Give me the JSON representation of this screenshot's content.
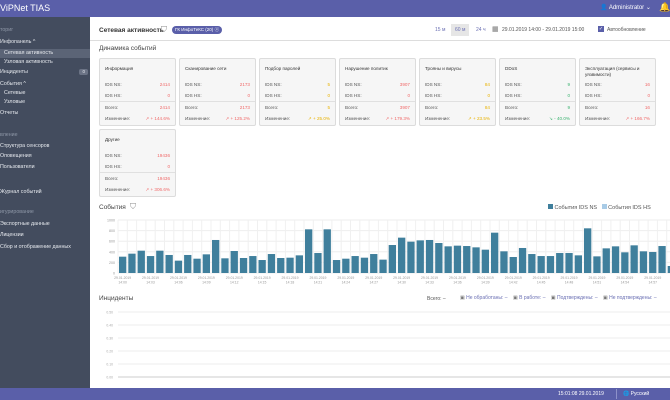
{
  "header": {
    "app_title": "ViPNet TIAS",
    "user": "Administrator"
  },
  "sidebar": {
    "items": [
      {
        "label": "ториг",
        "type": "grp"
      },
      {
        "label": "Инфопанель ^",
        "type": "item"
      },
      {
        "label": "Сетевая активность",
        "type": "sub sel"
      },
      {
        "label": "Узловая активность",
        "type": "sub"
      },
      {
        "label": "Инциденты",
        "type": "item",
        "badge": "0"
      },
      {
        "label": "События ^",
        "type": "item"
      },
      {
        "label": "Сетевые",
        "type": "sub"
      },
      {
        "label": "Узловые",
        "type": "sub"
      },
      {
        "label": "Отчеты",
        "type": "item"
      },
      {
        "label": "вление",
        "type": "grp"
      },
      {
        "label": "Структура сенсоров",
        "type": "item"
      },
      {
        "label": "Оповещения",
        "type": "item"
      },
      {
        "label": "Пользователи",
        "type": "item"
      },
      {
        "label": "Журнал событий",
        "type": "item"
      },
      {
        "label": "игурирование",
        "type": "grp"
      },
      {
        "label": "Экспортные данные",
        "type": "item"
      },
      {
        "label": "Лицензии",
        "type": "item"
      },
      {
        "label": "Сбор и отображение данных",
        "type": "item"
      }
    ]
  },
  "toolbar": {
    "title": "Сетевая активность",
    "filter_chip": "ГК ИнфоТеКС (20)",
    "ranges": [
      "15 м",
      "60 м",
      "24 ч"
    ],
    "active_range": "60 м",
    "date_range": "29.01.2019 14:00 - 29.01.2019 15:00",
    "auto_refresh": "Автообновление"
  },
  "dynamics": {
    "title": "Динамика событий",
    "labels": {
      "ns": "IDS NS:",
      "hs": "IDS HS:",
      "total": "Всего:",
      "change": "Изменение:"
    },
    "cards": [
      {
        "title": "Информация",
        "ns": "2414",
        "hs": "0",
        "total": "2414",
        "change": "↗ + 144.6%",
        "color": "#f06a6a"
      },
      {
        "title": "Сканирование сети",
        "ns": "2173",
        "hs": "0",
        "total": "2173",
        "change": "↗ + 125.2%",
        "color": "#f06a6a"
      },
      {
        "title": "Подбор паролей",
        "ns": "5",
        "hs": "0",
        "total": "5",
        "change": "↗ + 25.0%",
        "color": "#e8b200"
      },
      {
        "title": "Нарушение политик",
        "ns": "3907",
        "hs": "0",
        "total": "3907",
        "change": "↗ + 179.3%",
        "color": "#f06a6a"
      },
      {
        "title": "Трояны и вирусы",
        "ns": "84",
        "hs": "0",
        "total": "84",
        "change": "↗ + 23.5%",
        "color": "#e8b200"
      },
      {
        "title": "DDoS",
        "ns": "9",
        "hs": "0",
        "total": "9",
        "change": "↘ - 40.0%",
        "color": "#3cb371"
      },
      {
        "title": "Эксплуатация (сервисы и уязвимости)",
        "ns": "16",
        "hs": "0",
        "total": "16",
        "change": "↗ + 166.7%",
        "color": "#f06a6a"
      },
      {
        "title": "Другие",
        "ns": "19436",
        "hs": "0",
        "total": "19436",
        "change": "↗ + 306.6%",
        "color": "#f06a6a"
      }
    ]
  },
  "chart_data": {
    "type": "bar",
    "title": "События",
    "ylim": [
      0,
      1000
    ],
    "yticks": [
      "1000",
      "800",
      "600",
      "400",
      "200",
      "0"
    ],
    "legend": [
      "События IDS NS",
      "События IDS HS"
    ],
    "colors": [
      "#3f7f9c",
      "#a8cbe6"
    ],
    "xticks": [
      "29.01.2019 14:00",
      "29.01.2019 14:03",
      "29.01.2019 14:06",
      "29.01.2019 14:09",
      "29.01.2019 14:12",
      "29.01.2019 14:15",
      "29.01.2019 14:18",
      "29.01.2019 14:21",
      "29.01.2019 14:24",
      "29.01.2019 14:27",
      "29.01.2019 14:30",
      "29.01.2019 14:33",
      "29.01.2019 14:36",
      "29.01.2019 14:39",
      "29.01.2019 14:42",
      "29.01.2019 14:45",
      "29.01.2019 14:48",
      "29.01.2019 14:51",
      "29.01.2019 14:54",
      "29.01.2019 14:57",
      "29.01.2019 15:00"
    ],
    "values": [
      308,
      365,
      421,
      320,
      421,
      340,
      233,
      340,
      270,
      352,
      623,
      277,
      415,
      283,
      320,
      245,
      358,
      283,
      289,
      333,
      824,
      377,
      824,
      245,
      270,
      320,
      289,
      358,
      252,
      528,
      667,
      591,
      616,
      623,
      566,
      503,
      516,
      509,
      484,
      440,
      761,
      409,
      302,
      472,
      358,
      320,
      320,
      377,
      377,
      333,
      843,
      314,
      465,
      503,
      390,
      522,
      409,
      396,
      509,
      132,
      25
    ]
  },
  "incidents": {
    "title": "Инциденты",
    "total": "Всего: –",
    "statuses": [
      "Не обработаны: –",
      "В работе: –",
      "Подтверждены: –",
      "Не подтверждены: –"
    ],
    "yticks": [
      "0.50",
      "0.40",
      "0.30",
      "0.20",
      "0.10",
      "0.00"
    ]
  },
  "footer": {
    "time": "15:01:08 29.01.2019",
    "language": "Русский"
  }
}
